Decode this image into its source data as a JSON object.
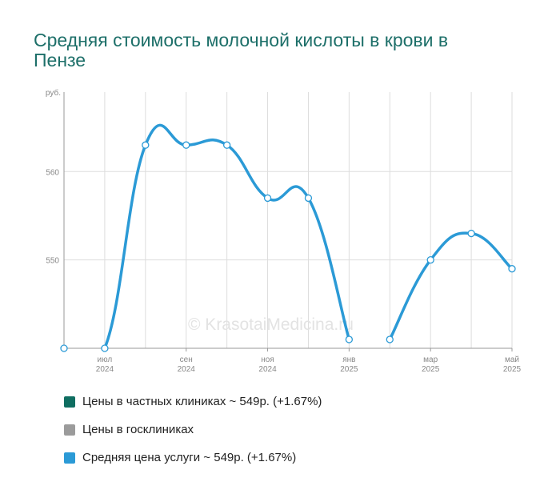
{
  "title": "Средняя стоимость молочной кислоты в крови в Пензе",
  "watermark": "© KrasotaiMedicina.ru",
  "colors": {
    "title": "#1d6f69",
    "grid": "#dddddd",
    "axis": "#999999",
    "line": "#2b9ad6",
    "point_fill": "#ffffff",
    "point_stroke": "#2b9ad6"
  },
  "legend": [
    {
      "label": "Цены в частных клиниках ~ 549р. (+1.67%)",
      "color": "#0f6e61"
    },
    {
      "label": "Цены в госклиниках",
      "color": "#9b9b9b"
    },
    {
      "label": "Средняя цена услуги ~ 549р. (+1.67%)",
      "color": "#2b9ad6"
    }
  ],
  "chart_data": {
    "type": "line",
    "title": "Средняя стоимость молочной кислоты в крови в Пензе",
    "y_unit": "руб.",
    "ylim": [
      540,
      569
    ],
    "y_ticks": [
      550,
      560
    ],
    "grid": true,
    "x_ticks": [
      {
        "month": 1,
        "line1": "июл",
        "line2": "2024"
      },
      {
        "month": 3,
        "line1": "сен",
        "line2": "2024"
      },
      {
        "month": 5,
        "line1": "ноя",
        "line2": "2024"
      },
      {
        "month": 7,
        "line1": "янв",
        "line2": "2025"
      },
      {
        "month": 9,
        "line1": "мар",
        "line2": "2025"
      },
      {
        "month": 11,
        "line1": "май",
        "line2": "2025"
      }
    ],
    "series": [
      {
        "name": "Средняя цена услуги",
        "points": [
          {
            "x": "2024-06",
            "y": 540
          },
          {
            "x": "2024-07",
            "y": 540
          },
          {
            "x": "2024-08",
            "y": 563
          },
          {
            "x": "2024-09",
            "y": 563
          },
          {
            "x": "2024-10",
            "y": 563
          },
          {
            "x": "2024-11",
            "y": 557
          },
          {
            "x": "2024-12",
            "y": 557
          },
          {
            "x": "2025-01",
            "y": 541
          },
          {
            "x": "2025-02",
            "y": 541
          },
          {
            "x": "2025-03",
            "y": 550
          },
          {
            "x": "2025-04",
            "y": 553
          },
          {
            "x": "2025-05",
            "y": 549
          }
        ],
        "segments": [
          [
            0,
            7
          ],
          [
            8,
            11
          ]
        ]
      }
    ]
  }
}
